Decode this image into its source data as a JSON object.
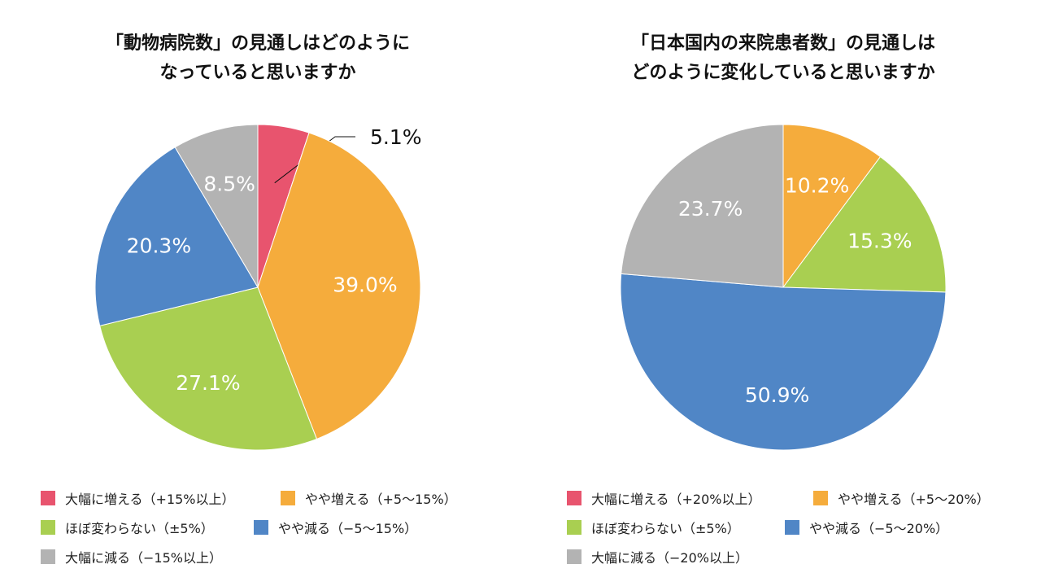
{
  "chart_data": [
    {
      "type": "pie",
      "title_lines": [
        "「動物病院数」の見通しはどのように",
        "なっていると思いますか"
      ],
      "categories": [
        "大幅に増える（+15%以上）",
        "やや増える（+5〜15%）",
        "ほぼ変わらない（±5%）",
        "やや減る（−5〜15%）",
        "大幅に減る（−15%以上）"
      ],
      "values": [
        5.1,
        39.0,
        27.1,
        20.3,
        8.5
      ],
      "labels": [
        "5.1%",
        "39.0%",
        "27.1%",
        "20.3%",
        "8.5%"
      ],
      "colors": [
        "#E8546E",
        "#F5AC3C",
        "#A9CF51",
        "#5086C6",
        "#B3B3B3"
      ],
      "legend_position": "bottom"
    },
    {
      "type": "pie",
      "title_lines": [
        "「日本国内の来院患者数」の見通しは",
        "どのように変化していると思いますか"
      ],
      "categories": [
        "大幅に増える（+20%以上）",
        "やや増える（+5〜20%）",
        "ほぼ変わらない（±5%）",
        "やや減る（−5〜20%）",
        "大幅に減る（−20%以上）"
      ],
      "values": [
        0,
        10.2,
        15.3,
        50.9,
        23.7
      ],
      "labels": [
        "",
        "10.2%",
        "15.3%",
        "50.9%",
        "23.7%"
      ],
      "colors": [
        "#E8546E",
        "#F5AC3C",
        "#A9CF51",
        "#5086C6",
        "#B3B3B3"
      ],
      "legend_position": "bottom"
    }
  ]
}
